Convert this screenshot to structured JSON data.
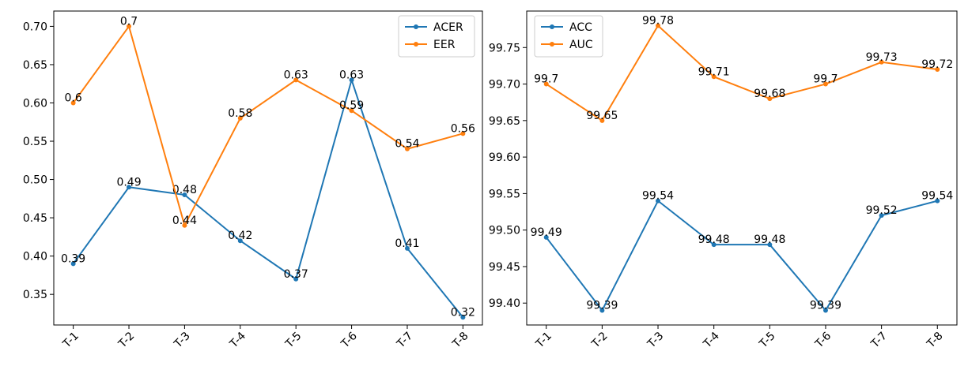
{
  "chart_data": [
    {
      "type": "line",
      "title": "",
      "xlabel": "",
      "ylabel": "",
      "categories": [
        "T-1",
        "T-2",
        "T-3",
        "T-4",
        "T-5",
        "T-6",
        "T-7",
        "T-8"
      ],
      "ylim": [
        0.31,
        0.72
      ],
      "yticks": [
        "0.35",
        "0.40",
        "0.45",
        "0.50",
        "0.55",
        "0.60",
        "0.65",
        "0.70"
      ],
      "legend_position": "top-right",
      "grid": false,
      "series": [
        {
          "name": "ACER",
          "color": "#1f77b4",
          "values": [
            0.39,
            0.49,
            0.48,
            0.42,
            0.37,
            0.63,
            0.41,
            0.32
          ],
          "labels": [
            "0.39",
            "0.49",
            "0.48",
            "0.42",
            "0.37",
            "0.63",
            "0.41",
            "0.32"
          ]
        },
        {
          "name": "EER",
          "color": "#ff7f0e",
          "values": [
            0.6,
            0.7,
            0.44,
            0.58,
            0.63,
            0.59,
            0.54,
            0.56
          ],
          "labels": [
            "0.6",
            "0.7",
            "0.44",
            "0.58",
            "0.63",
            "0.59",
            "0.54",
            "0.56"
          ]
        }
      ]
    },
    {
      "type": "line",
      "title": "",
      "xlabel": "",
      "ylabel": "",
      "categories": [
        "T-1",
        "T-2",
        "T-3",
        "T-4",
        "T-5",
        "T-6",
        "T-7",
        "T-8"
      ],
      "ylim": [
        99.37,
        99.8
      ],
      "yticks": [
        "99.40",
        "99.45",
        "99.50",
        "99.55",
        "99.60",
        "99.65",
        "99.70",
        "99.75"
      ],
      "legend_position": "top-left",
      "grid": false,
      "series": [
        {
          "name": "ACC",
          "color": "#1f77b4",
          "values": [
            99.49,
            99.39,
            99.54,
            99.48,
            99.48,
            99.39,
            99.52,
            99.54
          ],
          "labels": [
            "99.49",
            "99.39",
            "99.54",
            "99.48",
            "99.48",
            "99.39",
            "99.52",
            "99.54"
          ]
        },
        {
          "name": "AUC",
          "color": "#ff7f0e",
          "values": [
            99.7,
            99.65,
            99.78,
            99.71,
            99.68,
            99.7,
            99.73,
            99.72
          ],
          "labels": [
            "99.7",
            "99.65",
            "99.78",
            "99.71",
            "99.68",
            "99.7",
            "99.73",
            "99.72"
          ]
        }
      ]
    }
  ]
}
